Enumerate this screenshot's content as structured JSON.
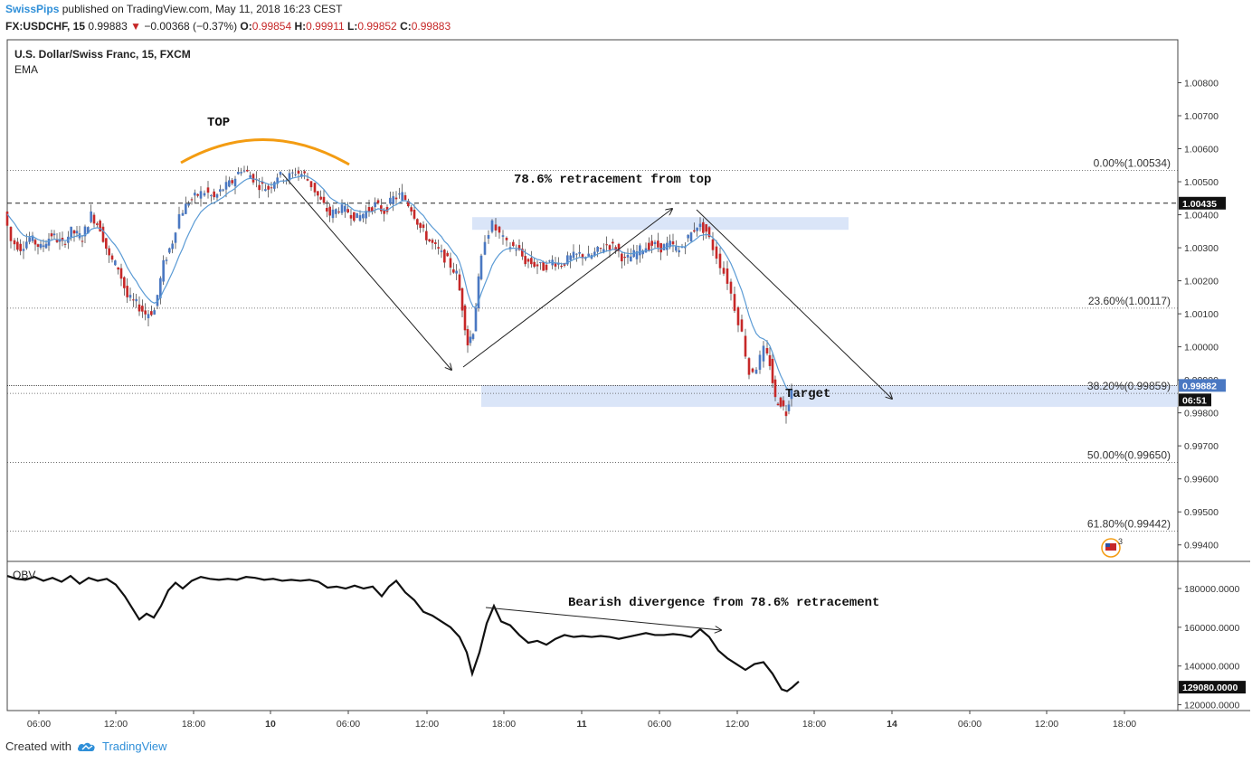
{
  "header": {
    "user": "SwissPips",
    "published": "published on TradingView.com, May 11, 2018 16:23 CEST",
    "symbol": "FX:USDCHF, 15",
    "last": "0.99883",
    "change": "−0.00368 (−0.37%)",
    "open_label": "O:",
    "open": "0.99854",
    "high_label": "H:",
    "high": "0.99911",
    "low_label": "L:",
    "low": "0.99852",
    "close_label": "C:",
    "close": "0.99883"
  },
  "pane": {
    "title": "U.S. Dollar/Swiss Franc, 15, FXCM",
    "indicator": "EMA",
    "obv_label": "OBV"
  },
  "footer": {
    "created": "Created with",
    "brand": "TradingView",
    "icon": "cloud-logo-icon"
  },
  "chart_data": {
    "type": "candlestick",
    "price_axis": {
      "ylim": [
        0.9935,
        1.0093
      ],
      "ticks": [
        "1.00800",
        "1.00700",
        "1.00600",
        "1.00500",
        "1.00400",
        "1.00300",
        "1.00200",
        "1.00100",
        "1.00000",
        "0.99900",
        "0.99800",
        "0.99700",
        "0.99600",
        "0.99500",
        "0.99400"
      ],
      "current_price_label": "0.99882",
      "countdown_label": "06:51",
      "dashed_level_label": "1.00435"
    },
    "obv_axis": {
      "ylim": [
        117000,
        194000
      ],
      "ticks": [
        "180000.0000",
        "160000.0000",
        "140000.0000",
        "120000.0000"
      ],
      "current_label": "129080.0000"
    },
    "x_ticks": [
      "06:00",
      "12:00",
      "18:00",
      "10",
      "06:00",
      "12:00",
      "18:00",
      "11",
      "06:00",
      "12:00",
      "18:00",
      "14",
      "06:00",
      "12:00",
      "18:00"
    ],
    "fib_levels": [
      {
        "label": "0.00%(1.00534)",
        "price": 1.00534
      },
      {
        "label": "23.60%(1.00117)",
        "price": 1.00117
      },
      {
        "label": "38.20%(0.99859)",
        "price": 0.99859
      },
      {
        "label": "50.00%(0.99650)",
        "price": 0.9965
      },
      {
        "label": "61.80%(0.99442)",
        "price": 0.99442
      }
    ],
    "horizontal_dashed_level": 1.00435,
    "annotations": {
      "top": "TOP",
      "retracement": "78.6% retracement from top",
      "target": "Target",
      "divergence": "Bearish divergence from 78.6% retracement"
    },
    "target_zone": [
      0.99818,
      0.99883
    ],
    "retracement_zone": [
      1.00365,
      1.0039
    ],
    "price_path": [
      [
        0,
        1.0041
      ],
      [
        8,
        1.0032
      ],
      [
        18,
        1.003
      ],
      [
        28,
        1.0033
      ],
      [
        40,
        1.003
      ],
      [
        52,
        1.0034
      ],
      [
        64,
        1.0031
      ],
      [
        74,
        1.0035
      ],
      [
        86,
        1.0033
      ],
      [
        96,
        1.004
      ],
      [
        106,
        1.0036
      ],
      [
        116,
        1.0027
      ],
      [
        126,
        1.0024
      ],
      [
        136,
        1.0015
      ],
      [
        146,
        1.0013
      ],
      [
        156,
        1.001
      ],
      [
        166,
        1.0011
      ],
      [
        176,
        1.0025
      ],
      [
        186,
        1.0032
      ],
      [
        194,
        1.004
      ],
      [
        204,
        1.0044
      ],
      [
        214,
        1.0046
      ],
      [
        222,
        1.0047
      ],
      [
        232,
        1.0045
      ],
      [
        242,
        1.0048
      ],
      [
        252,
        1.005
      ],
      [
        262,
        1.0054
      ],
      [
        272,
        1.0052
      ],
      [
        282,
        1.0049
      ],
      [
        292,
        1.0048
      ],
      [
        302,
        1.0052
      ],
      [
        312,
        1.0051
      ],
      [
        322,
        1.0053
      ],
      [
        332,
        1.0052
      ],
      [
        340,
        1.0049
      ],
      [
        350,
        1.0044
      ],
      [
        360,
        1.004
      ],
      [
        370,
        1.0042
      ],
      [
        380,
        1.0041
      ],
      [
        390,
        1.0039
      ],
      [
        400,
        1.0041
      ],
      [
        410,
        1.0043
      ],
      [
        420,
        1.0041
      ],
      [
        430,
        1.0045
      ],
      [
        440,
        1.0046
      ],
      [
        450,
        1.0042
      ],
      [
        460,
        1.0036
      ],
      [
        470,
        1.0032
      ],
      [
        480,
        1.0029
      ],
      [
        490,
        1.0026
      ],
      [
        500,
        1.0022
      ],
      [
        506,
        1.0012
      ],
      [
        512,
        1.0001
      ],
      [
        518,
        1.0005
      ],
      [
        524,
        1.002
      ],
      [
        532,
        1.0033
      ],
      [
        540,
        1.0037
      ],
      [
        548,
        1.0034
      ],
      [
        556,
        1.0031
      ],
      [
        566,
        1.003
      ],
      [
        576,
        1.0026
      ],
      [
        586,
        1.0025
      ],
      [
        596,
        1.0024
      ],
      [
        606,
        1.0026
      ],
      [
        616,
        1.0025
      ],
      [
        626,
        1.0027
      ],
      [
        636,
        1.0028
      ],
      [
        646,
        1.0027
      ],
      [
        656,
        1.0029
      ],
      [
        666,
        1.0031
      ],
      [
        676,
        1.003
      ],
      [
        686,
        1.0026
      ],
      [
        696,
        1.0028
      ],
      [
        706,
        1.003
      ],
      [
        716,
        1.0031
      ],
      [
        726,
        1.003
      ],
      [
        736,
        1.0031
      ],
      [
        746,
        1.0029
      ],
      [
        756,
        1.0033
      ],
      [
        766,
        1.0037
      ],
      [
        776,
        1.0035
      ],
      [
        784,
        1.003
      ],
      [
        792,
        1.0025
      ],
      [
        800,
        1.002
      ],
      [
        808,
        1.0012
      ],
      [
        816,
        1.0004
      ],
      [
        824,
        0.9992
      ],
      [
        832,
        0.9994
      ],
      [
        840,
        0.9999
      ],
      [
        846,
        0.9995
      ],
      [
        852,
        0.9984
      ],
      [
        858,
        0.9983
      ],
      [
        864,
        0.998
      ],
      [
        870,
        0.9988
      ]
    ],
    "obv_path": [
      [
        0,
        186500
      ],
      [
        10,
        185000
      ],
      [
        20,
        184500
      ],
      [
        30,
        186000
      ],
      [
        40,
        184000
      ],
      [
        50,
        185500
      ],
      [
        60,
        183500
      ],
      [
        70,
        186500
      ],
      [
        80,
        182500
      ],
      [
        90,
        185500
      ],
      [
        100,
        184000
      ],
      [
        110,
        185000
      ],
      [
        120,
        182000
      ],
      [
        130,
        176000
      ],
      [
        138,
        170000
      ],
      [
        146,
        164000
      ],
      [
        154,
        167000
      ],
      [
        162,
        165000
      ],
      [
        170,
        171000
      ],
      [
        178,
        179000
      ],
      [
        186,
        183000
      ],
      [
        194,
        180000
      ],
      [
        204,
        184000
      ],
      [
        214,
        186000
      ],
      [
        224,
        185000
      ],
      [
        234,
        184500
      ],
      [
        244,
        185000
      ],
      [
        254,
        184500
      ],
      [
        264,
        186000
      ],
      [
        274,
        185500
      ],
      [
        284,
        184500
      ],
      [
        294,
        185000
      ],
      [
        304,
        184000
      ],
      [
        314,
        184500
      ],
      [
        324,
        184000
      ],
      [
        334,
        184500
      ],
      [
        344,
        183500
      ],
      [
        354,
        180500
      ],
      [
        364,
        181000
      ],
      [
        374,
        180000
      ],
      [
        384,
        181500
      ],
      [
        394,
        180000
      ],
      [
        404,
        181000
      ],
      [
        414,
        176000
      ],
      [
        422,
        181000
      ],
      [
        430,
        184000
      ],
      [
        440,
        178000
      ],
      [
        450,
        174000
      ],
      [
        460,
        168000
      ],
      [
        470,
        166000
      ],
      [
        480,
        163000
      ],
      [
        490,
        160000
      ],
      [
        500,
        155000
      ],
      [
        508,
        147000
      ],
      [
        514,
        136000
      ],
      [
        522,
        147000
      ],
      [
        530,
        162000
      ],
      [
        538,
        171000
      ],
      [
        546,
        163000
      ],
      [
        556,
        161000
      ],
      [
        566,
        156000
      ],
      [
        576,
        152000
      ],
      [
        586,
        153000
      ],
      [
        596,
        151000
      ],
      [
        606,
        154000
      ],
      [
        616,
        156000
      ],
      [
        626,
        155000
      ],
      [
        636,
        155500
      ],
      [
        646,
        155000
      ],
      [
        656,
        155500
      ],
      [
        666,
        155000
      ],
      [
        676,
        154000
      ],
      [
        686,
        155000
      ],
      [
        696,
        156000
      ],
      [
        706,
        157000
      ],
      [
        716,
        156000
      ],
      [
        726,
        156000
      ],
      [
        736,
        156500
      ],
      [
        746,
        156000
      ],
      [
        756,
        155000
      ],
      [
        766,
        159000
      ],
      [
        776,
        155000
      ],
      [
        786,
        148000
      ],
      [
        796,
        144000
      ],
      [
        806,
        141000
      ],
      [
        816,
        138000
      ],
      [
        826,
        141000
      ],
      [
        836,
        142000
      ],
      [
        846,
        136000
      ],
      [
        856,
        128000
      ],
      [
        862,
        127000
      ],
      [
        868,
        129080
      ],
      [
        875,
        132000
      ]
    ],
    "ema_color": "#5b9bd5",
    "up_color": "#4a78c2",
    "down_color": "#c62828",
    "top_arc_color": "#f39c12"
  }
}
